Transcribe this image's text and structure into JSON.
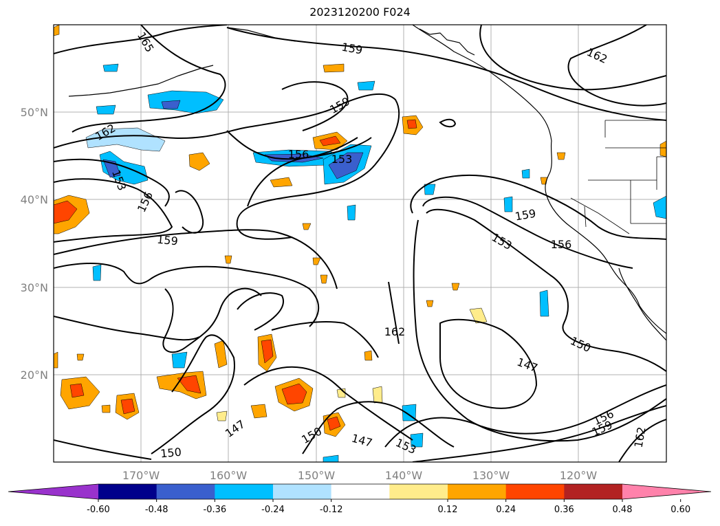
{
  "title": "2023120200 F024",
  "map": {
    "lat_labels": [
      "50°N",
      "40°N",
      "30°N",
      "20°N"
    ],
    "lon_labels": [
      "170°W",
      "160°W",
      "150°W",
      "140°W",
      "130°W",
      "120°W"
    ],
    "contour_labels": [
      {
        "text": "165"
      },
      {
        "text": "159"
      },
      {
        "text": "162"
      },
      {
        "text": "159"
      },
      {
        "text": "162"
      },
      {
        "text": "156"
      },
      {
        "text": "153"
      },
      {
        "text": "153"
      },
      {
        "text": "156"
      },
      {
        "text": "159"
      },
      {
        "text": "159"
      },
      {
        "text": "153"
      },
      {
        "text": "156"
      },
      {
        "text": "162"
      },
      {
        "text": "150"
      },
      {
        "text": "147"
      },
      {
        "text": "147"
      },
      {
        "text": "150"
      },
      {
        "text": "147"
      },
      {
        "text": "153"
      },
      {
        "text": "150"
      },
      {
        "text": "156"
      },
      {
        "text": "159"
      },
      {
        "text": "162"
      }
    ]
  },
  "colorbar": {
    "colors": [
      "#9932cc",
      "#00008b",
      "#3a5fcd",
      "#00bfff",
      "#b0e2ff",
      "#ffffff",
      "#ffec8b",
      "#ffa500",
      "#ff4500",
      "#b22222",
      "#ff82ab"
    ],
    "ticks": [
      "-0.60",
      "-0.48",
      "-0.36",
      "-0.24",
      "-0.12",
      "0.12",
      "0.24",
      "0.36",
      "0.48",
      "0.60"
    ]
  }
}
